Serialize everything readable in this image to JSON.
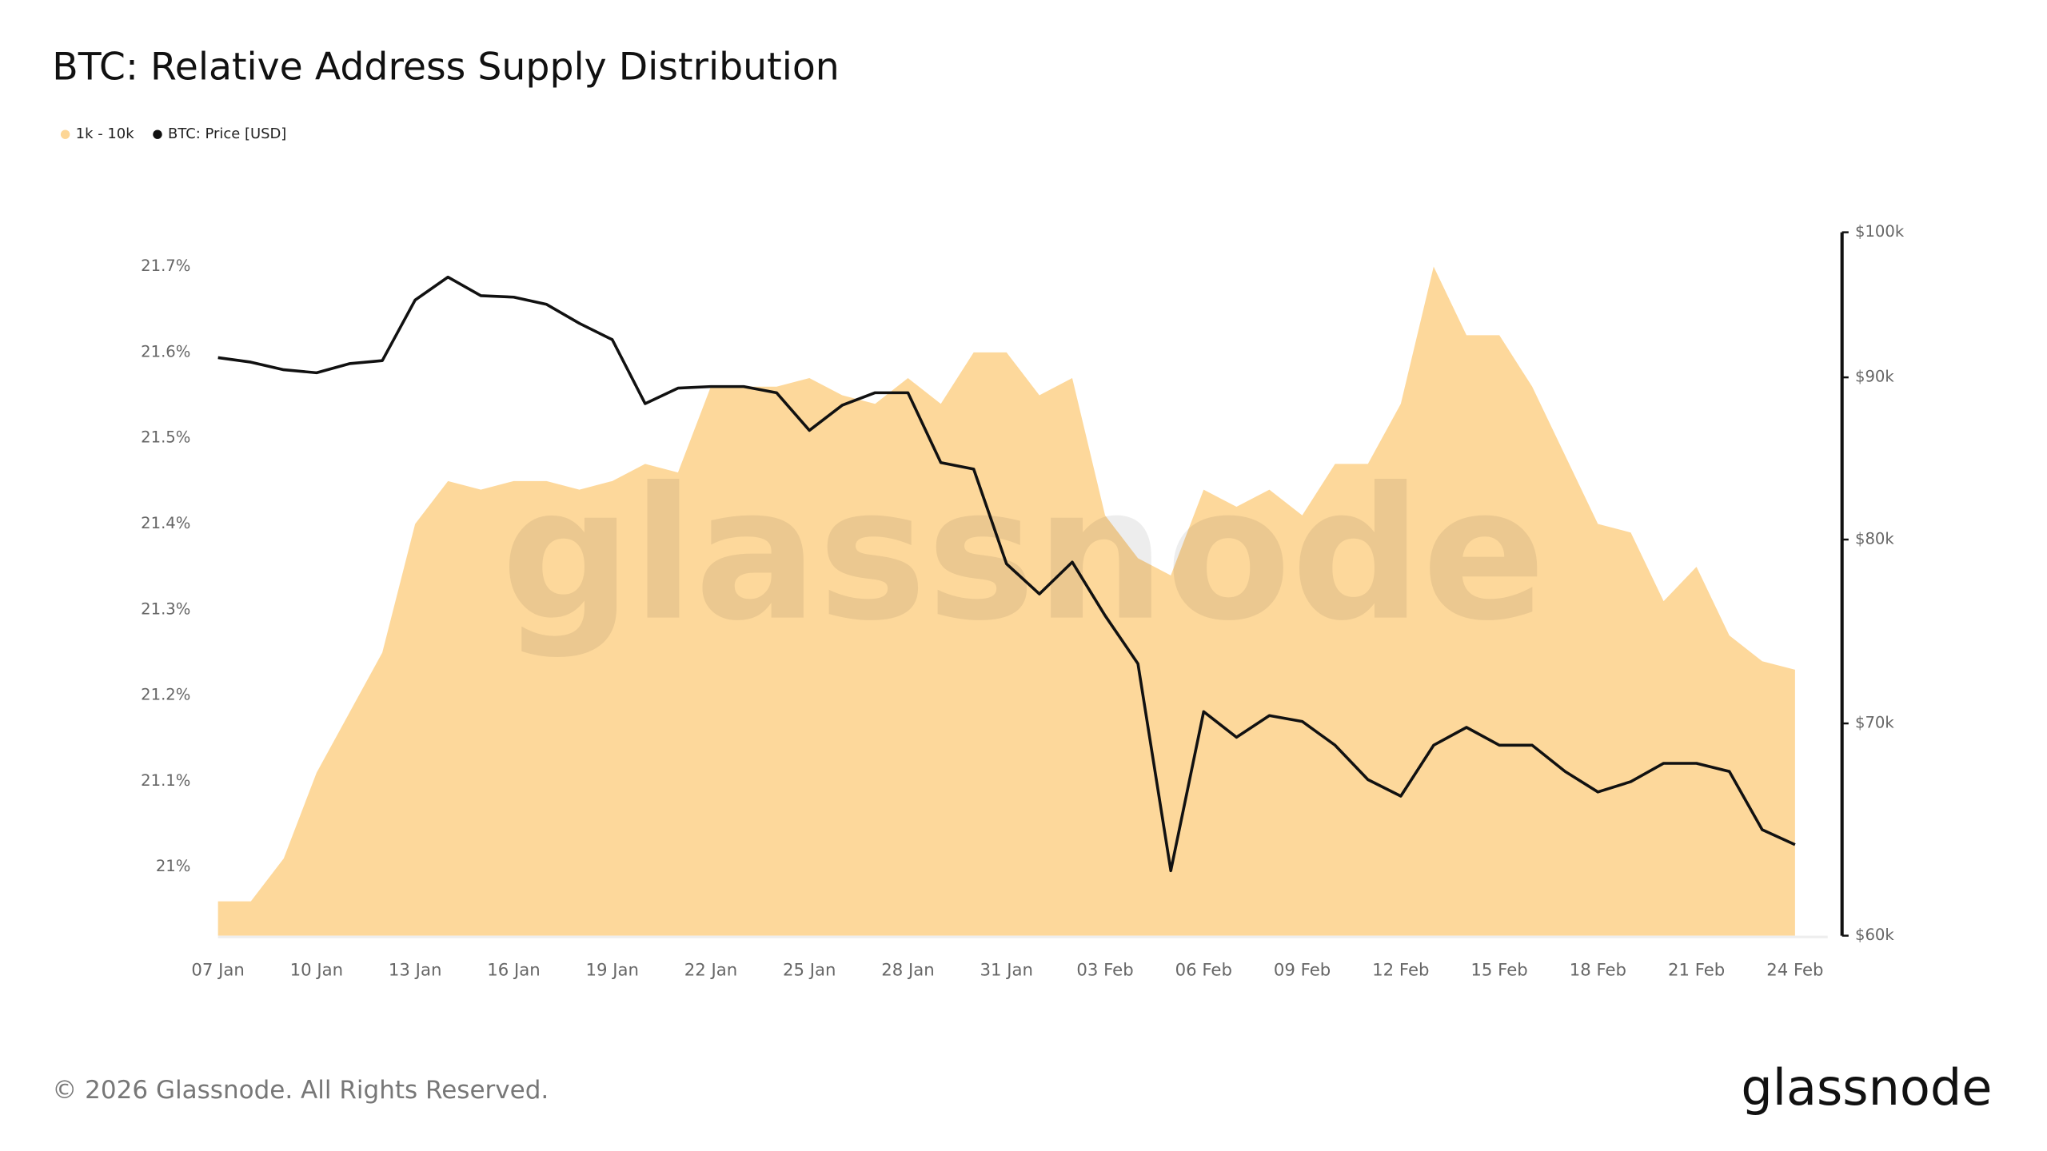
{
  "chart_data": {
    "type": "line",
    "title": "BTC: Relative Address Supply Distribution",
    "categories": [
      "07 Jan",
      null,
      null,
      "10 Jan",
      null,
      null,
      "13 Jan",
      null,
      null,
      "16 Jan",
      null,
      null,
      "19 Jan",
      null,
      null,
      "22 Jan",
      null,
      null,
      "25 Jan",
      null,
      null,
      "28 Jan",
      null,
      null,
      "31 Jan",
      null,
      null,
      "03 Feb",
      null,
      null,
      "06 Feb",
      null,
      null,
      "09 Feb",
      null,
      null,
      "12 Feb",
      null,
      null,
      "15 Feb",
      null,
      null,
      "18 Feb",
      null,
      null,
      "21 Feb",
      null,
      null,
      "24 Feb"
    ],
    "series": [
      {
        "name": "1k - 10k",
        "type": "area",
        "color": "#fdd696",
        "values": [
          20.96,
          20.96,
          21.01,
          21.11,
          21.18,
          21.25,
          21.4,
          21.45,
          21.44,
          21.45,
          21.45,
          21.44,
          21.45,
          21.47,
          21.46,
          21.56,
          21.56,
          21.56,
          21.57,
          21.55,
          21.54,
          21.57,
          21.54,
          21.6,
          21.6,
          21.55,
          21.57,
          21.41,
          21.36,
          21.34,
          21.44,
          21.42,
          21.44,
          21.41,
          21.47,
          21.47,
          21.54,
          21.7,
          21.62,
          21.62,
          21.56,
          21.48,
          21.4,
          21.39,
          21.31,
          21.35,
          21.27,
          21.24,
          21.23
        ]
      },
      {
        "name": "BTC: Price [USD]",
        "type": "line",
        "color": "#111111",
        "axis": "y2",
        "values": [
          91300,
          91000,
          90500,
          90300,
          90900,
          91100,
          95200,
          96800,
          95500,
          95400,
          94900,
          93600,
          92500,
          88300,
          89300,
          89400,
          89400,
          89000,
          86600,
          88200,
          89000,
          89000,
          84600,
          84200,
          78600,
          76900,
          78700,
          75700,
          73100,
          62900,
          70600,
          69300,
          70400,
          70100,
          68900,
          67200,
          66400,
          68900,
          69800,
          68900,
          68900,
          67600,
          66600,
          67100,
          68000,
          68000,
          67600,
          64800,
          64100
        ]
      }
    ],
    "ylim": [
      20.92,
      21.74
    ],
    "yticks": [
      {
        "value": 21,
        "label": "21%"
      },
      {
        "value": 21.1,
        "label": "21.1%"
      },
      {
        "value": 21.2,
        "label": "21.2%"
      },
      {
        "value": 21.3,
        "label": "21.3%"
      },
      {
        "value": 21.4,
        "label": "21.4%"
      },
      {
        "value": 21.5,
        "label": "21.5%"
      },
      {
        "value": 21.6,
        "label": "21.6%"
      },
      {
        "value": 21.7,
        "label": "21.7%"
      }
    ],
    "y2lim": [
      60000,
      100000
    ],
    "y2log": true,
    "y2ticks": [
      {
        "value": 60000,
        "label": "$60k"
      },
      {
        "value": 70000,
        "label": "$70k"
      },
      {
        "value": 80000,
        "label": "$80k"
      },
      {
        "value": 90000,
        "label": "$90k"
      },
      {
        "value": 100000,
        "label": "$100k"
      }
    ],
    "watermark": "glassnode",
    "footer": "© 2026 Glassnode. All Rights Reserved.",
    "logo": "glassnode"
  }
}
